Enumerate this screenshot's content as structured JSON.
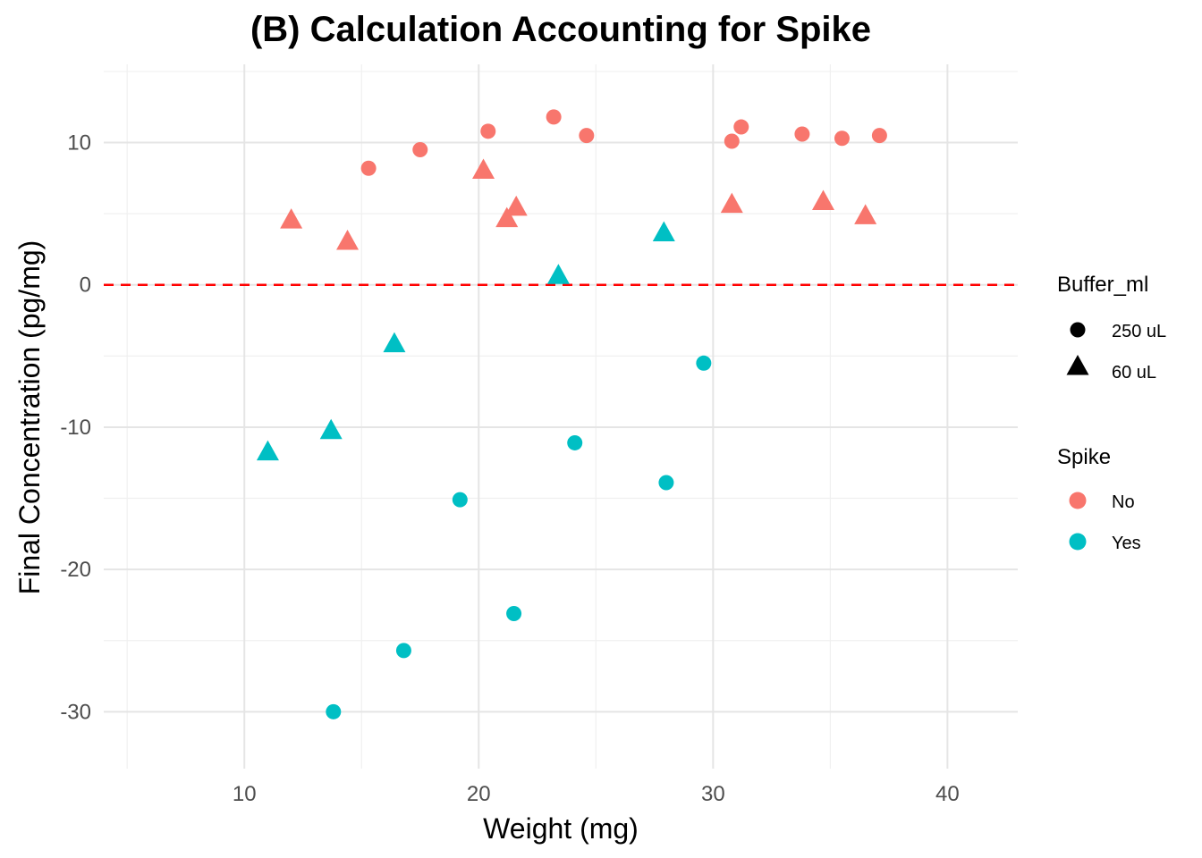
{
  "chart_data": {
    "type": "scatter",
    "title": "(B) Calculation Accounting for Spike",
    "xlabel": "Weight (mg)",
    "ylabel": "Final Concentration (pg/mg)",
    "xlim": [
      4,
      43
    ],
    "ylim": [
      -34,
      15.5
    ],
    "x_ticks": [
      10,
      20,
      30,
      40
    ],
    "y_ticks": [
      -30,
      -20,
      -10,
      0,
      10
    ],
    "x_tick_labels": [
      "10",
      "20",
      "30",
      "40"
    ],
    "y_tick_labels": [
      "-30",
      "-20",
      "-10",
      "0",
      "10"
    ],
    "grid": true,
    "reference_line": {
      "y": 0,
      "style": "dashed",
      "color": "#ff0000"
    },
    "legend": {
      "placement": "right",
      "groups": [
        {
          "title": "Buffer_ml",
          "entries": [
            {
              "label": "250 uL",
              "shape": "circle"
            },
            {
              "label": "60 uL",
              "shape": "triangle"
            }
          ]
        },
        {
          "title": "Spike",
          "entries": [
            {
              "label": "No",
              "color": "#F8766D"
            },
            {
              "label": "Yes",
              "color": "#00BFC4"
            }
          ]
        }
      ]
    },
    "colors": {
      "No": "#F8766D",
      "Yes": "#00BFC4"
    },
    "series": [
      {
        "spike": "No",
        "buffer": "250 uL",
        "points": [
          [
            15.3,
            8.2
          ],
          [
            17.5,
            9.5
          ],
          [
            20.4,
            10.8
          ],
          [
            23.2,
            11.8
          ],
          [
            24.6,
            10.5
          ],
          [
            30.8,
            10.1
          ],
          [
            31.2,
            11.1
          ],
          [
            33.8,
            10.6
          ],
          [
            35.5,
            10.3
          ],
          [
            37.1,
            10.5
          ]
        ]
      },
      {
        "spike": "No",
        "buffer": "60 uL",
        "points": [
          [
            12.0,
            4.5
          ],
          [
            14.4,
            3.0
          ],
          [
            20.2,
            8.0
          ],
          [
            21.2,
            4.6
          ],
          [
            21.6,
            5.4
          ],
          [
            30.8,
            5.6
          ],
          [
            34.7,
            5.8
          ],
          [
            36.5,
            4.8
          ]
        ]
      },
      {
        "spike": "Yes",
        "buffer": "250 uL",
        "points": [
          [
            13.8,
            -30.0
          ],
          [
            16.8,
            -25.7
          ],
          [
            19.2,
            -15.1
          ],
          [
            21.5,
            -23.1
          ],
          [
            24.1,
            -11.1
          ],
          [
            28.0,
            -13.9
          ],
          [
            29.6,
            -5.5
          ]
        ]
      },
      {
        "spike": "Yes",
        "buffer": "60 uL",
        "points": [
          [
            11.0,
            -11.8
          ],
          [
            13.7,
            -10.3
          ],
          [
            16.4,
            -4.2
          ],
          [
            23.4,
            0.6
          ],
          [
            27.9,
            3.6
          ]
        ]
      }
    ]
  }
}
